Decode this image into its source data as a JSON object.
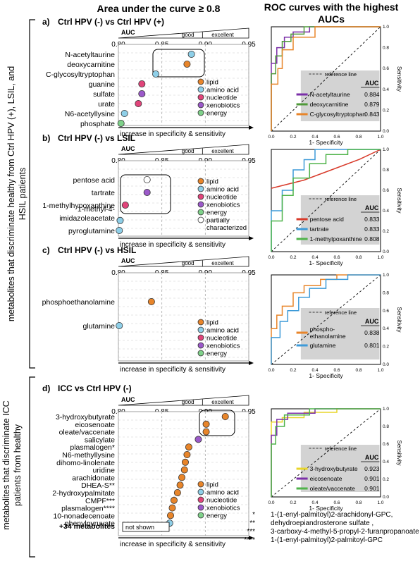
{
  "header": {
    "left_title": "Area under the curve ≥ 0.8",
    "right_title_line1": "ROC curves with the highest",
    "right_title_line2": "AUCs"
  },
  "side_labels": {
    "top_lines": [
      "metabolites that discriminate healthy from Ctrl HPV (+), LSIL, and",
      "HSIL patients"
    ],
    "bottom_lines": [
      "metabolites that discriminate ICC",
      "patients  from  healthy"
    ]
  },
  "axis_common": {
    "auc_label": "AUC",
    "good_label": "good",
    "excellent_label": "excellent",
    "ticks": [
      "0.80",
      "0.85",
      "0.90",
      "0.95"
    ],
    "bottom_label": "increase in specificity & sensitivity",
    "xlim": [
      0.8,
      0.95
    ]
  },
  "colors": {
    "lipid": "#e8852a",
    "amino acid": "#8ecfe8",
    "nucleotide": "#e0447a",
    "xenobiotics": "#9b59c9",
    "energy": "#7fd18a",
    "partially characterized": "#ffffff"
  },
  "roc_common": {
    "reference_line": "reference line",
    "auc_header": "AUC",
    "x_label": "1- Specificity",
    "y_label": "Sensitivity",
    "ticks": [
      "0.0",
      "0.2",
      "0.4",
      "0.6",
      "0.8",
      "1.0"
    ]
  },
  "chart_data": [
    {
      "type": "scatter",
      "panel": "a)",
      "title": "Ctrl HPV (-) vs Ctrl HPV (+)",
      "xlim": [
        0.8,
        0.95
      ],
      "points": [
        {
          "label": "N-acetyltaurine",
          "x": 0.884,
          "class": "amino acid"
        },
        {
          "label": "deoxycarnitine",
          "x": 0.879,
          "class": "lipid"
        },
        {
          "label": "C-glycosyltryptophan",
          "x": 0.843,
          "class": "amino acid"
        },
        {
          "label": "guanine",
          "x": 0.827,
          "class": "nucleotide"
        },
        {
          "label": "sulfate",
          "x": 0.827,
          "class": "xenobiotics"
        },
        {
          "label": "urate",
          "x": 0.823,
          "class": "nucleotide"
        },
        {
          "label": "N6-acetyllysine",
          "x": 0.807,
          "class": "amino acid"
        },
        {
          "label": "phosphate",
          "x": 0.803,
          "class": "energy"
        }
      ],
      "legend": [
        "lipid",
        "amino acid",
        "nucleotide",
        "xenobiotics",
        "energy"
      ]
    },
    {
      "type": "scatter",
      "panel": "b)",
      "title": "Ctrl HPV (-) vs LSIL",
      "xlim": [
        0.8,
        0.95
      ],
      "points": [
        {
          "label": "pentose acid",
          "x": 0.833,
          "class": "partially characterized"
        },
        {
          "label": "tartrate",
          "x": 0.833,
          "class": "xenobiotics"
        },
        {
          "label": "1-methylhypoxanthine",
          "x": 0.808,
          "class": "nucleotide"
        },
        {
          "label": "1-methyl-4-imidazoleacetate",
          "x": 0.802,
          "class": "amino acid"
        },
        {
          "label": "pyroglutamine",
          "x": 0.801,
          "class": "amino acid"
        }
      ],
      "legend": [
        "lipid",
        "amino acid",
        "nucleotide",
        "xenobiotics",
        "energy",
        "partially characterized"
      ]
    },
    {
      "type": "scatter",
      "panel": "c)",
      "title": "Ctrl HPV (-) vs HSIL",
      "xlim": [
        0.8,
        0.95
      ],
      "points": [
        {
          "label": "phosphoethanolamine",
          "x": 0.838,
          "class": "lipid"
        },
        {
          "label": "glutamine",
          "x": 0.801,
          "class": "amino acid"
        }
      ],
      "legend": [
        "lipid",
        "amino acid",
        "nucleotide",
        "xenobiotics",
        "energy"
      ]
    },
    {
      "type": "scatter",
      "panel": "d)",
      "title": "ICC vs Ctrl HPV (-)",
      "xlim": [
        0.8,
        0.95
      ],
      "points": [
        {
          "label": "3-hydroxybutyrate",
          "x": 0.923,
          "class": "lipid"
        },
        {
          "label": "eicosenoate",
          "x": 0.901,
          "class": "lipid"
        },
        {
          "label": "oleate/vaccenate",
          "x": 0.901,
          "class": "lipid"
        },
        {
          "label": "salicylate",
          "x": 0.892,
          "class": "xenobiotics"
        },
        {
          "label": "plasmalogen*",
          "x": 0.881,
          "class": "lipid"
        },
        {
          "label": "N6-methyllysine",
          "x": 0.879,
          "class": "lipid"
        },
        {
          "label": "dihomo-linolenate",
          "x": 0.877,
          "class": "lipid"
        },
        {
          "label": "uridine",
          "x": 0.876,
          "class": "lipid"
        },
        {
          "label": "arachidonate",
          "x": 0.873,
          "class": "lipid"
        },
        {
          "label": "DHEA-S**",
          "x": 0.871,
          "class": "lipid"
        },
        {
          "label": "2-hydroxypalmitate",
          "x": 0.868,
          "class": "lipid"
        },
        {
          "label": "CMPF***",
          "x": 0.864,
          "class": "lipid"
        },
        {
          "label": "plasmalogen****",
          "x": 0.862,
          "class": "lipid"
        },
        {
          "label": "10-nonadecenoate",
          "x": 0.86,
          "class": "lipid"
        },
        {
          "label": "phenylpyruvate",
          "x": 0.859,
          "class": "amino acid"
        }
      ],
      "extra_label": "+34 metabolites",
      "not_shown": "not shown",
      "legend": [
        "lipid",
        "amino acid",
        "nucleotide",
        "xenobiotics",
        "energy"
      ],
      "footnote_marks": [
        "*",
        "**",
        "***",
        "****"
      ],
      "footnotes": [
        "1-(1-enyl-palmitoyl)2-arachidonyl-GPC,",
        "dehydroepiandrosterone sulfate ,",
        "3-carboxy-4-methyl-5-propyl-2-furanpropanoate",
        "1-(1-enyl-palmitoyl)2-palmitoyl-GPC"
      ]
    },
    {
      "type": "line",
      "panel": "a ROC",
      "xlim": [
        0,
        1
      ],
      "ylim": [
        0,
        1
      ],
      "series": [
        {
          "name": "N-acetyltaurine",
          "auc": "0.884",
          "color": "#7b2fa8",
          "points": [
            [
              0,
              0
            ],
            [
              0,
              0.65
            ],
            [
              0.05,
              0.65
            ],
            [
              0.05,
              0.8
            ],
            [
              0.12,
              0.8
            ],
            [
              0.12,
              0.9
            ],
            [
              0.2,
              0.9
            ],
            [
              0.2,
              0.95
            ],
            [
              0.35,
              0.95
            ],
            [
              0.35,
              1
            ],
            [
              1,
              1
            ]
          ]
        },
        {
          "name": "deoxycarnitine",
          "auc": "0.879",
          "color": "#4f9a3a",
          "points": [
            [
              0,
              0
            ],
            [
              0,
              0.55
            ],
            [
              0.04,
              0.55
            ],
            [
              0.04,
              0.72
            ],
            [
              0.1,
              0.72
            ],
            [
              0.1,
              0.86
            ],
            [
              0.18,
              0.86
            ],
            [
              0.18,
              0.93
            ],
            [
              0.3,
              0.93
            ],
            [
              0.3,
              1
            ],
            [
              1,
              1
            ]
          ]
        },
        {
          "name": "C-glycosyltryptophan",
          "auc": "0.843",
          "color": "#e8852a",
          "points": [
            [
              0,
              0
            ],
            [
              0,
              0.45
            ],
            [
              0.06,
              0.45
            ],
            [
              0.06,
              0.6
            ],
            [
              0.1,
              0.6
            ],
            [
              0.1,
              0.78
            ],
            [
              0.2,
              0.78
            ],
            [
              0.2,
              0.9
            ],
            [
              0.4,
              0.9
            ],
            [
              0.4,
              1
            ],
            [
              1,
              1
            ]
          ]
        }
      ]
    },
    {
      "type": "line",
      "panel": "b ROC",
      "xlim": [
        0,
        1
      ],
      "ylim": [
        0,
        1
      ],
      "series": [
        {
          "name": "pentose acid",
          "auc": "0.833",
          "color": "#d83a2a",
          "points": [
            [
              0,
              0.62
            ],
            [
              0.3,
              0.7
            ],
            [
              0.55,
              0.8
            ],
            [
              0.8,
              0.9
            ],
            [
              1,
              1
            ]
          ]
        },
        {
          "name": "tartrate",
          "auc": "0.833",
          "color": "#3d9ad8",
          "points": [
            [
              0,
              0
            ],
            [
              0,
              0.4
            ],
            [
              0.1,
              0.4
            ],
            [
              0.1,
              0.6
            ],
            [
              0.2,
              0.6
            ],
            [
              0.2,
              0.8
            ],
            [
              0.3,
              0.8
            ],
            [
              0.3,
              0.9
            ],
            [
              0.4,
              0.9
            ],
            [
              0.4,
              1
            ],
            [
              1,
              1
            ]
          ]
        },
        {
          "name": "1-methylpoxanthine",
          "auc": "0.808",
          "color": "#4fb34a",
          "points": [
            [
              0,
              0
            ],
            [
              0,
              0.3
            ],
            [
              0.1,
              0.3
            ],
            [
              0.1,
              0.55
            ],
            [
              0.2,
              0.55
            ],
            [
              0.2,
              0.72
            ],
            [
              0.35,
              0.72
            ],
            [
              0.35,
              0.86
            ],
            [
              0.5,
              0.86
            ],
            [
              0.5,
              0.95
            ],
            [
              0.7,
              0.95
            ],
            [
              0.7,
              1
            ],
            [
              1,
              1
            ]
          ]
        }
      ]
    },
    {
      "type": "line",
      "panel": "c ROC",
      "xlim": [
        0,
        1
      ],
      "ylim": [
        0,
        1
      ],
      "series": [
        {
          "name": "phospho-ethanolamine",
          "auc": "0.838",
          "color": "#e8852a",
          "points": [
            [
              0,
              0
            ],
            [
              0,
              0.4
            ],
            [
              0.05,
              0.4
            ],
            [
              0.05,
              0.55
            ],
            [
              0.1,
              0.55
            ],
            [
              0.1,
              0.65
            ],
            [
              0.2,
              0.65
            ],
            [
              0.2,
              0.8
            ],
            [
              0.3,
              0.8
            ],
            [
              0.3,
              0.88
            ],
            [
              0.45,
              0.88
            ],
            [
              0.45,
              0.95
            ],
            [
              0.6,
              0.95
            ],
            [
              0.6,
              1
            ],
            [
              1,
              1
            ]
          ]
        },
        {
          "name": "glutamine",
          "auc": "0.801",
          "color": "#3d9ad8",
          "points": [
            [
              0,
              0
            ],
            [
              0,
              0.3
            ],
            [
              0.08,
              0.3
            ],
            [
              0.08,
              0.48
            ],
            [
              0.15,
              0.48
            ],
            [
              0.15,
              0.6
            ],
            [
              0.25,
              0.6
            ],
            [
              0.25,
              0.75
            ],
            [
              0.35,
              0.75
            ],
            [
              0.35,
              0.85
            ],
            [
              0.5,
              0.85
            ],
            [
              0.5,
              0.95
            ],
            [
              0.7,
              0.95
            ],
            [
              0.7,
              1
            ],
            [
              1,
              1
            ]
          ]
        }
      ]
    },
    {
      "type": "line",
      "panel": "d ROC",
      "xlim": [
        0,
        1
      ],
      "ylim": [
        0,
        1
      ],
      "series": [
        {
          "name": "3-hydroxybutyrate",
          "auc": "0.923",
          "color": "#e8d52a",
          "points": [
            [
              0,
              0
            ],
            [
              0,
              0.85
            ],
            [
              0.1,
              0.85
            ],
            [
              0.1,
              0.9
            ],
            [
              0.3,
              0.9
            ],
            [
              0.3,
              0.96
            ],
            [
              0.6,
              0.96
            ],
            [
              0.6,
              1
            ],
            [
              1,
              1
            ]
          ]
        },
        {
          "name": "eicosenoate",
          "auc": "0.901",
          "color": "#7b2fa8",
          "points": [
            [
              0,
              0
            ],
            [
              0,
              0.7
            ],
            [
              0.05,
              0.7
            ],
            [
              0.05,
              0.88
            ],
            [
              0.15,
              0.88
            ],
            [
              0.15,
              0.95
            ],
            [
              0.4,
              0.95
            ],
            [
              0.4,
              1
            ],
            [
              1,
              1
            ]
          ]
        },
        {
          "name": "oleate/vaccenate",
          "auc": "0.901",
          "color": "#4fb34a",
          "points": [
            [
              0,
              0
            ],
            [
              0,
              0.6
            ],
            [
              0.04,
              0.6
            ],
            [
              0.04,
              0.8
            ],
            [
              0.12,
              0.8
            ],
            [
              0.12,
              0.93
            ],
            [
              0.35,
              0.93
            ],
            [
              0.35,
              1
            ],
            [
              1,
              1
            ]
          ]
        }
      ]
    }
  ]
}
